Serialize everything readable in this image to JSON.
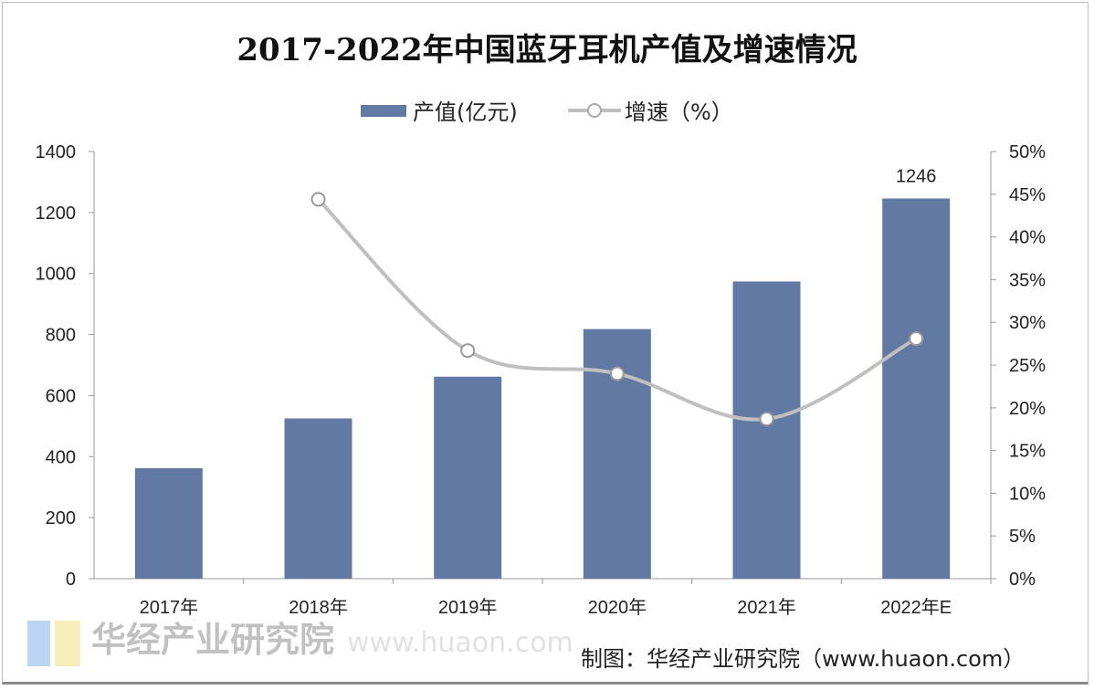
{
  "chart_data": {
    "type": "bar+line",
    "title": "2017-2022年中国蓝牙耳机产值及增速情况",
    "categories": [
      "2017年",
      "2018年",
      "2019年",
      "2020年",
      "2021年",
      "2022年E"
    ],
    "series": [
      {
        "name": "产值(亿元)",
        "type": "bar",
        "axis": "left",
        "color": "#6279a3",
        "values": [
          362,
          525,
          662,
          818,
          974,
          1246
        ]
      },
      {
        "name": "增速（%）",
        "type": "line",
        "axis": "right",
        "color": "#bfbfbf",
        "values": [
          null,
          44.4,
          26.7,
          24.0,
          18.7,
          28.1
        ]
      }
    ],
    "data_labels": [
      {
        "category": "2022年E",
        "text": "1246"
      }
    ],
    "y_left": {
      "range": [
        0,
        1400
      ],
      "ticks": [
        "0",
        "200",
        "400",
        "600",
        "800",
        "1000",
        "1200",
        "1400"
      ]
    },
    "y_right": {
      "range": [
        0,
        50
      ],
      "ticks": [
        "0%",
        "5%",
        "10%",
        "15%",
        "20%",
        "25%",
        "30%",
        "35%",
        "40%",
        "45%",
        "50%"
      ]
    },
    "grid": false,
    "legend_position": "top"
  },
  "source": "制图：华经产业研究院（www.huaon.com）",
  "watermark": {
    "name": "华经产业研究院",
    "url": "www.huaon.com"
  }
}
